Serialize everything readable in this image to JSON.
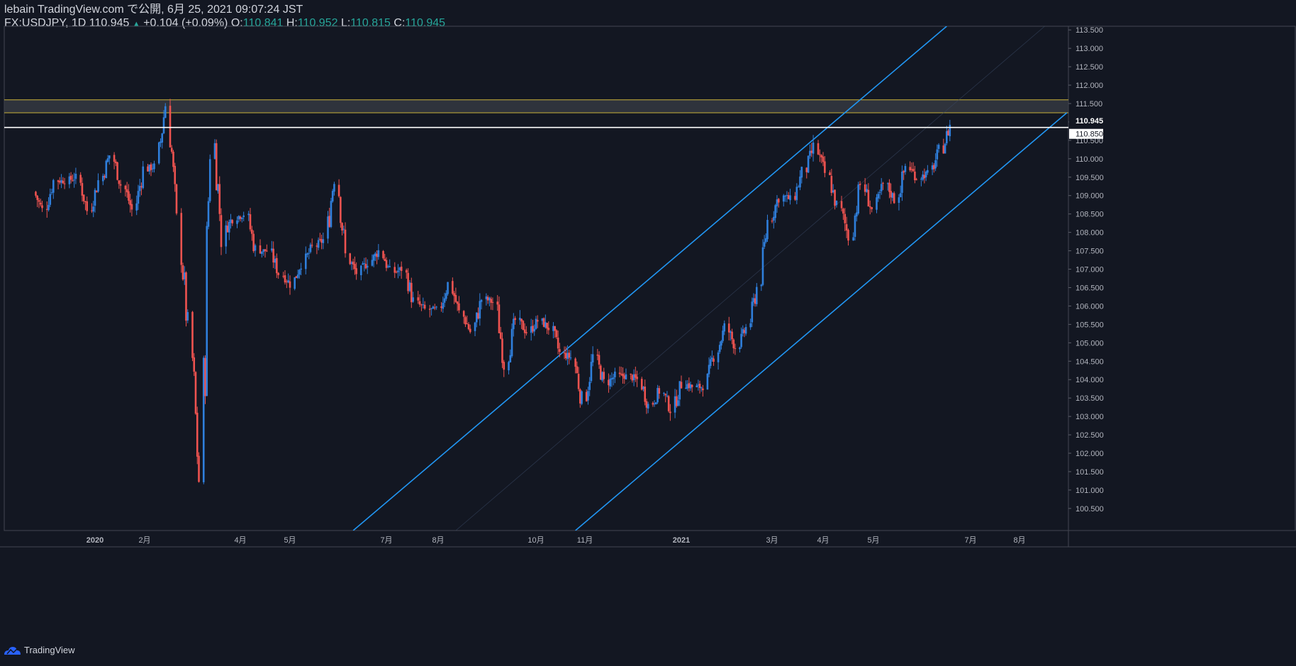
{
  "header": {
    "line1": "lebain TradingView.com で公開, 6月 25, 2021 09:07:24 JST",
    "symbol_label": "FX:USDJPY, 1D 110.945",
    "change": "+0.104 (+0.09%)",
    "o_label": "O:",
    "o_value": "110.841",
    "h_label": "H:",
    "h_value": "110.952",
    "l_label": "L:",
    "l_value": "110.815",
    "c_label": "C:",
    "c_value": "110.945"
  },
  "footer": {
    "brand": "TradingView"
  },
  "colors": {
    "background": "#131722",
    "up": "#2f7fdc",
    "down": "#ef5350",
    "channel": "#2196f3",
    "zone_border": "#c9b23a",
    "zone_fill": "#3a3d45",
    "axis_text": "#b2b5be",
    "white_line": "#ffffff"
  },
  "chart_data": {
    "type": "candlestick",
    "symbol": "FX:USDJPY",
    "interval": "1D",
    "ylim": [
      99.9,
      113.6
    ],
    "y_ticks": [
      "100.500",
      "101.000",
      "101.500",
      "102.000",
      "102.500",
      "103.000",
      "103.500",
      "104.000",
      "104.500",
      "105.000",
      "105.500",
      "106.000",
      "106.500",
      "107.000",
      "107.500",
      "108.000",
      "108.500",
      "109.000",
      "109.500",
      "110.000",
      "110.500",
      "111.000",
      "111.500",
      "112.000",
      "112.500",
      "113.000",
      "113.500"
    ],
    "x_ticks": [
      {
        "label": "2020",
        "date": "2020-01-01"
      },
      {
        "label": "2月",
        "date": "2020-02-01"
      },
      {
        "label": "4月",
        "date": "2020-04-01"
      },
      {
        "label": "5月",
        "date": "2020-05-01"
      },
      {
        "label": "7月",
        "date": "2020-07-01"
      },
      {
        "label": "8月",
        "date": "2020-08-01"
      },
      {
        "label": "10月",
        "date": "2020-10-01"
      },
      {
        "label": "11月",
        "date": "2020-11-01"
      },
      {
        "label": "2021",
        "date": "2021-01-01"
      },
      {
        "label": "3月",
        "date": "2021-03-01"
      },
      {
        "label": "4月",
        "date": "2021-04-01"
      },
      {
        "label": "5月",
        "date": "2021-05-01"
      },
      {
        "label": "7月",
        "date": "2021-07-01"
      },
      {
        "label": "8月",
        "date": "2021-08-01"
      }
    ],
    "last_price": {
      "label": "110.945",
      "value": 110.945
    },
    "horizontal_line": {
      "label": "110.850",
      "value": 110.85
    },
    "resistance_zone": {
      "low": 111.25,
      "high": 111.6
    },
    "channel": [
      {
        "role": "upper",
        "start": {
          "date": "2020-06-10",
          "price": 99.9
        },
        "end": {
          "date": "2021-06-16",
          "price": 113.6
        }
      },
      {
        "role": "lower",
        "start": {
          "date": "2020-10-26",
          "price": 99.9
        },
        "end": {
          "date": "2021-08-31",
          "price": 111.25
        }
      },
      {
        "role": "mid",
        "start": {
          "date": "2020-08-12",
          "price": 99.9
        },
        "end": {
          "date": "2021-08-17",
          "price": 113.6
        }
      }
    ],
    "candles_close": [
      [
        "2019-11-25",
        109.1
      ],
      [
        "2019-12-02",
        108.6
      ],
      [
        "2019-12-09",
        109.4
      ],
      [
        "2019-12-16",
        109.4
      ],
      [
        "2019-12-23",
        109.5
      ],
      [
        "2019-12-30",
        108.6
      ],
      [
        "2020-01-06",
        109.4
      ],
      [
        "2020-01-13",
        110.1
      ],
      [
        "2020-01-20",
        109.3
      ],
      [
        "2020-01-27",
        108.6
      ],
      [
        "2020-02-03",
        109.7
      ],
      [
        "2020-02-10",
        109.8
      ],
      [
        "2020-02-17",
        111.5
      ],
      [
        "2020-02-24",
        108.1
      ],
      [
        "2020-03-02",
        105.3
      ],
      [
        "2020-03-09",
        101.3
      ],
      [
        "2020-03-16",
        110.9
      ],
      [
        "2020-03-23",
        108.0
      ],
      [
        "2020-03-30",
        108.4
      ],
      [
        "2020-04-06",
        108.5
      ],
      [
        "2020-04-13",
        107.5
      ],
      [
        "2020-04-20",
        107.5
      ],
      [
        "2020-04-27",
        106.9
      ],
      [
        "2020-05-04",
        106.6
      ],
      [
        "2020-05-11",
        107.2
      ],
      [
        "2020-05-18",
        107.6
      ],
      [
        "2020-05-25",
        107.8
      ],
      [
        "2020-06-01",
        109.6
      ],
      [
        "2020-06-08",
        107.3
      ],
      [
        "2020-06-15",
        106.9
      ],
      [
        "2020-06-22",
        107.2
      ],
      [
        "2020-06-29",
        107.5
      ],
      [
        "2020-07-06",
        106.9
      ],
      [
        "2020-07-13",
        107.0
      ],
      [
        "2020-07-20",
        106.1
      ],
      [
        "2020-07-27",
        105.9
      ],
      [
        "2020-08-03",
        105.9
      ],
      [
        "2020-08-10",
        106.6
      ],
      [
        "2020-08-17",
        105.8
      ],
      [
        "2020-08-24",
        105.3
      ],
      [
        "2020-08-31",
        106.2
      ],
      [
        "2020-09-07",
        106.1
      ],
      [
        "2020-09-14",
        104.5
      ],
      [
        "2020-09-21",
        105.6
      ],
      [
        "2020-09-28",
        105.3
      ],
      [
        "2020-10-05",
        105.6
      ],
      [
        "2020-10-12",
        105.4
      ],
      [
        "2020-10-19",
        104.7
      ],
      [
        "2020-10-26",
        104.6
      ],
      [
        "2020-11-02",
        103.4
      ],
      [
        "2020-11-09",
        104.6
      ],
      [
        "2020-11-16",
        103.9
      ],
      [
        "2020-11-23",
        104.1
      ],
      [
        "2020-11-30",
        104.1
      ],
      [
        "2020-12-07",
        104.0
      ],
      [
        "2020-12-14",
        103.3
      ],
      [
        "2020-12-21",
        103.7
      ],
      [
        "2020-12-28",
        103.2
      ],
      [
        "2021-01-04",
        103.9
      ],
      [
        "2021-01-11",
        103.8
      ],
      [
        "2021-01-18",
        103.8
      ],
      [
        "2021-01-25",
        104.7
      ],
      [
        "2021-02-01",
        105.4
      ],
      [
        "2021-02-08",
        104.9
      ],
      [
        "2021-02-15",
        105.4
      ],
      [
        "2021-02-22",
        106.5
      ],
      [
        "2021-03-01",
        108.3
      ],
      [
        "2021-03-08",
        109.0
      ],
      [
        "2021-03-15",
        108.9
      ],
      [
        "2021-03-22",
        109.6
      ],
      [
        "2021-03-29",
        110.3
      ],
      [
        "2021-04-05",
        109.6
      ],
      [
        "2021-04-12",
        108.7
      ],
      [
        "2021-04-19",
        107.9
      ],
      [
        "2021-04-26",
        109.3
      ],
      [
        "2021-05-03",
        108.6
      ],
      [
        "2021-05-10",
        109.3
      ],
      [
        "2021-05-17",
        108.9
      ],
      [
        "2021-05-24",
        109.8
      ],
      [
        "2021-05-31",
        109.5
      ],
      [
        "2021-06-07",
        109.6
      ],
      [
        "2021-06-14",
        110.2
      ],
      [
        "2021-06-21",
        110.9
      ]
    ]
  }
}
